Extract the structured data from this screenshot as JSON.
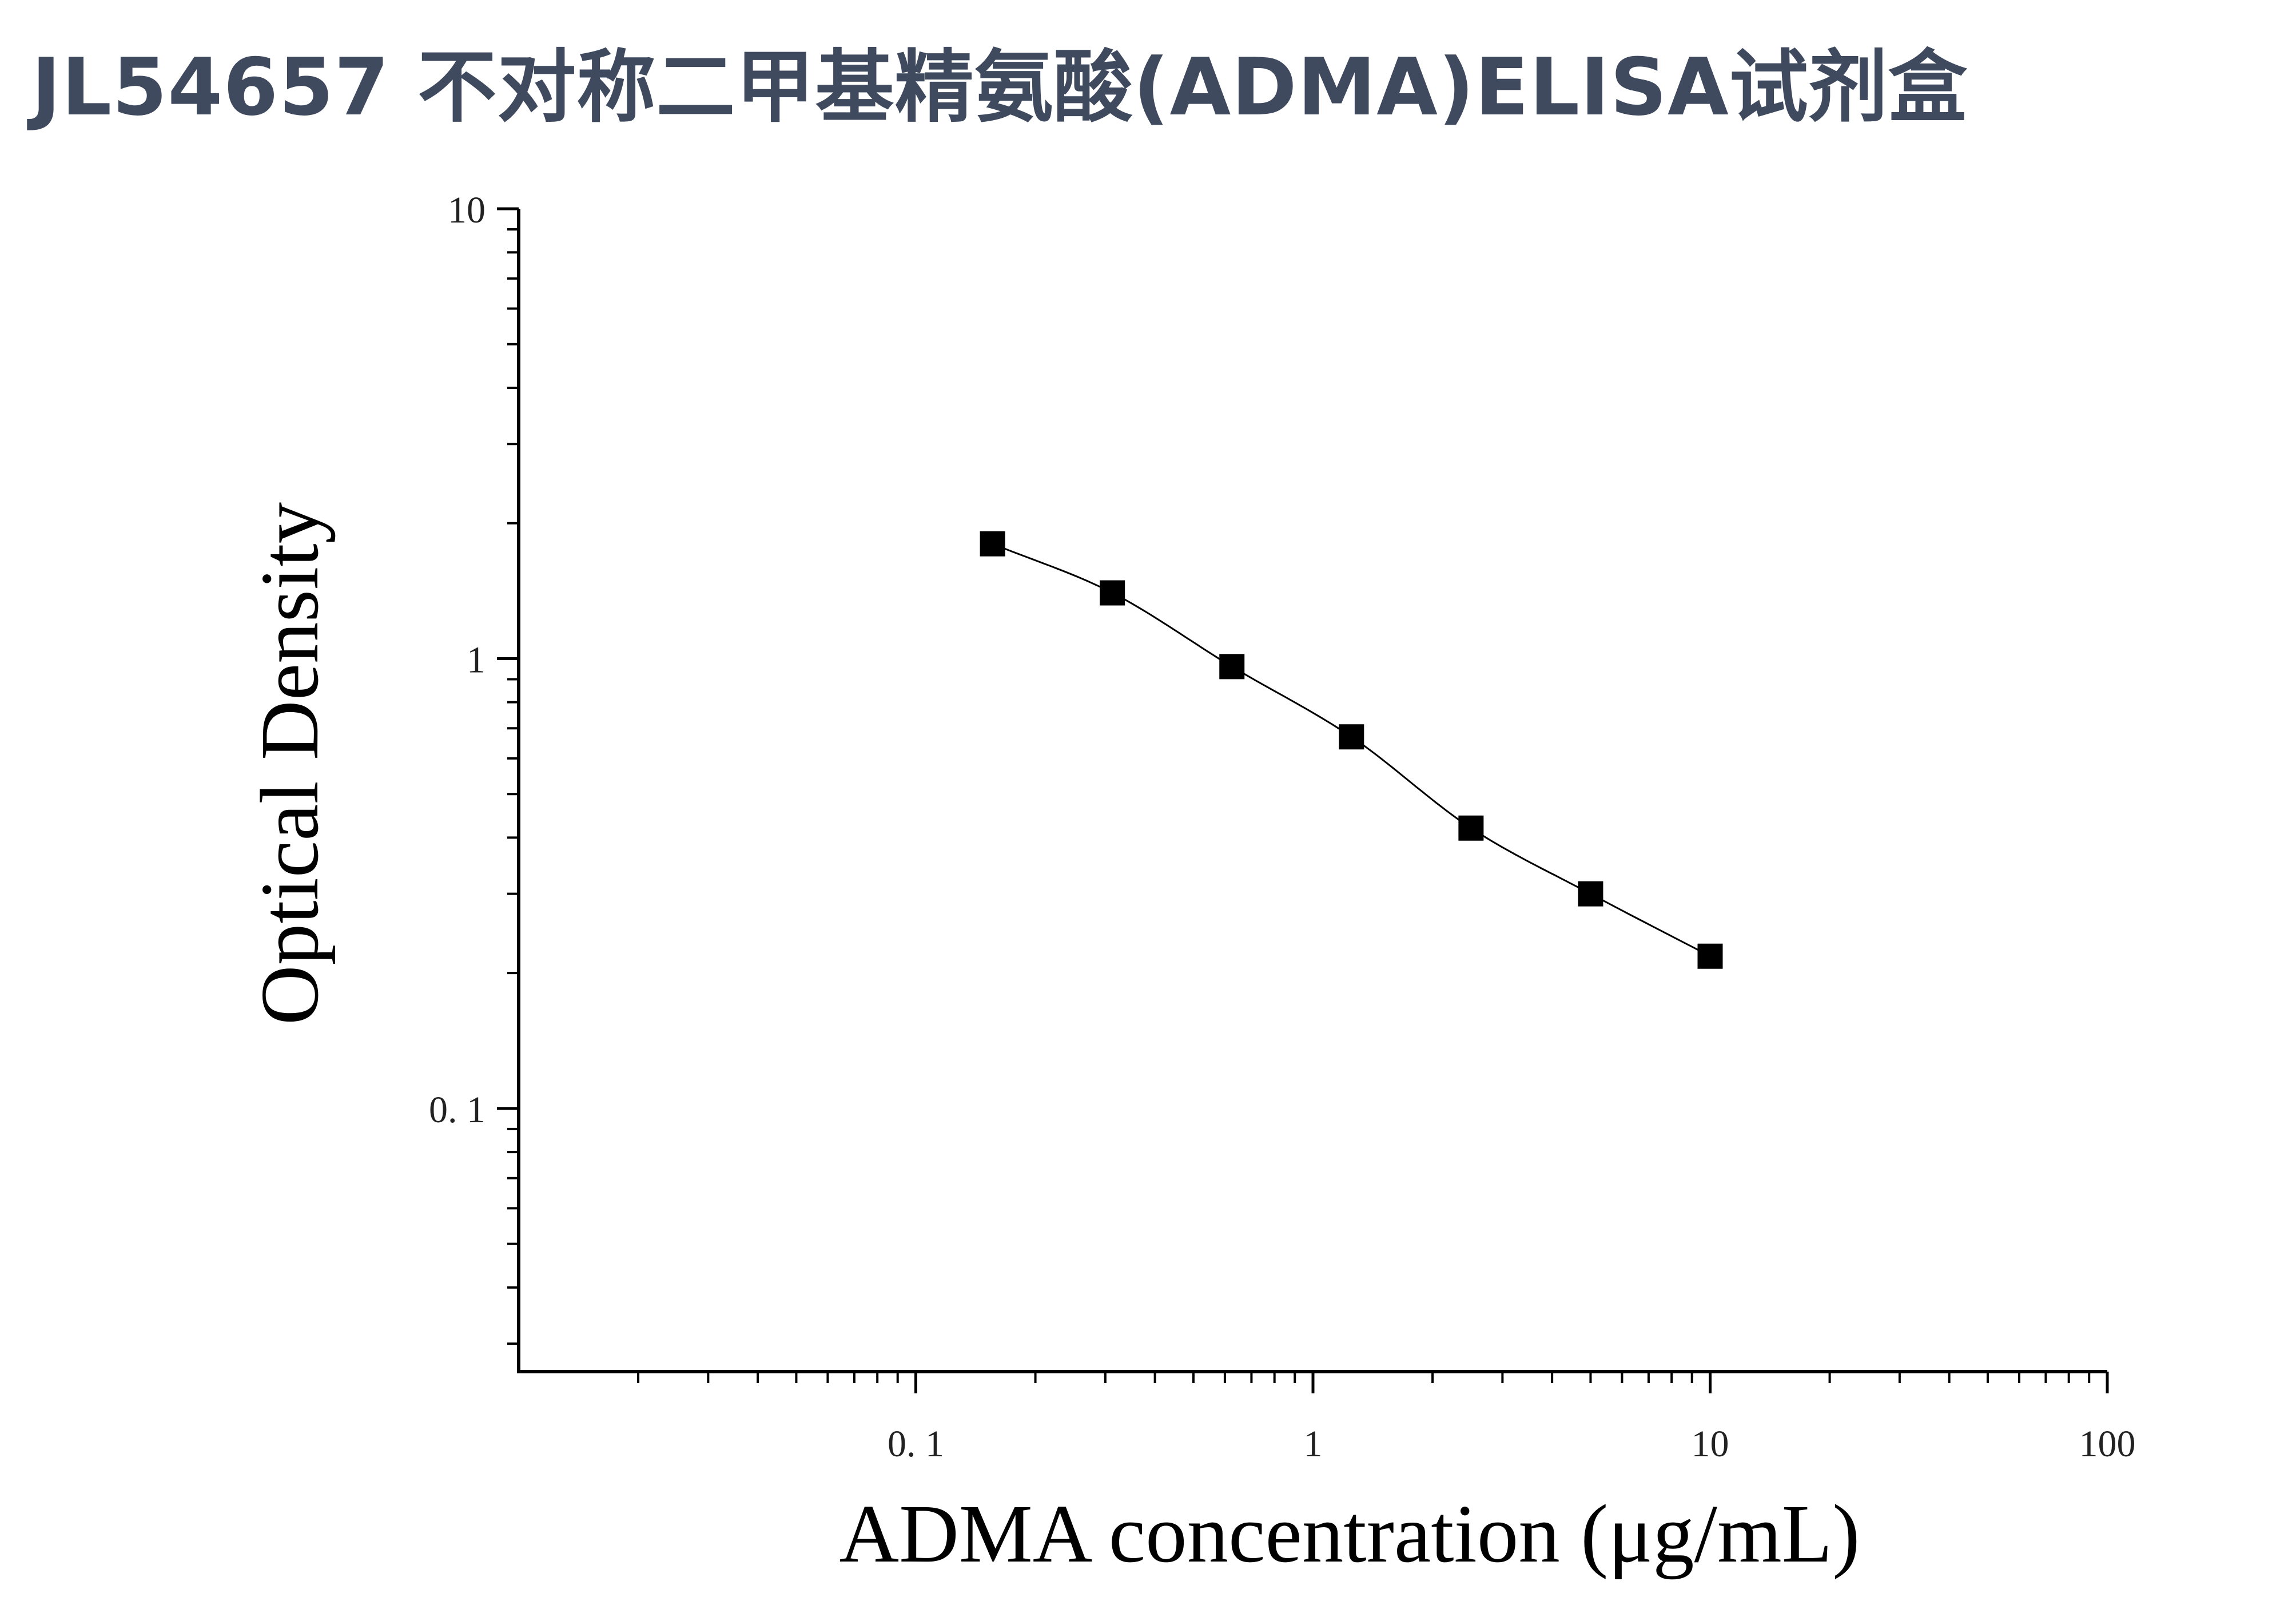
{
  "title": "JL54657 不对称二甲基精氨酸(ADMA)ELISA试剂盒",
  "chart_data": {
    "type": "scatter",
    "xlabel": "ADMA concentration (μg/mL)",
    "ylabel": "Optical Density",
    "xscale": "log",
    "yscale": "log",
    "xlim": [
      0.01,
      100
    ],
    "ylim": [
      0.026,
      10
    ],
    "x_tick_labels": [
      "0. 1",
      "1",
      "10",
      "100"
    ],
    "y_tick_labels": [
      "0. 1",
      "1",
      "10"
    ],
    "series": [
      {
        "x": [
          0.156,
          0.3125,
          0.625,
          1.25,
          2.5,
          5,
          10
        ],
        "y": [
          1.8,
          1.4,
          0.96,
          0.67,
          0.42,
          0.3,
          0.218
        ]
      }
    ],
    "curve": "fitted",
    "marker": "square",
    "colors": {
      "marker": "#000000",
      "axis": "#000000",
      "title": "#3f4a5f"
    }
  }
}
